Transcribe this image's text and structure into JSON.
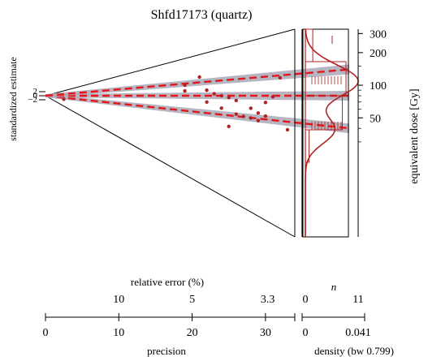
{
  "chart_data": {
    "type": "scatter",
    "subtype": "abanico",
    "title": "Shfd17173 (quartz)",
    "zlabel": "standardized estimate",
    "z_ticks": [
      "2",
      "0",
      "−2"
    ],
    "ylabel": "equivalent dose [Gy]",
    "y_ticks": [
      50,
      100,
      200,
      300
    ],
    "y_scale": "log",
    "ylim": [
      20,
      300
    ],
    "precision": {
      "label": "precision",
      "ticks": [
        "0",
        "10",
        "20",
        "30"
      ],
      "range": [
        0,
        34
      ]
    },
    "relative_error": {
      "label": "relative error (%)",
      "ticks": [
        "10",
        "5",
        "3.3"
      ]
    },
    "density": {
      "label": "density (bw 0.799)",
      "ticks": [
        "0",
        "0.041"
      ]
    },
    "n_axis": {
      "label": "n",
      "ticks": [
        "0",
        "11"
      ]
    },
    "central_doses": [
      40,
      80,
      140
    ],
    "points": [
      {
        "x": 2.5,
        "y": 29
      },
      {
        "x": 21,
        "y": 152
      },
      {
        "x": 19,
        "y": 120
      },
      {
        "x": 19,
        "y": 96
      },
      {
        "x": 22,
        "y": 96
      },
      {
        "x": 23,
        "y": 85
      },
      {
        "x": 24,
        "y": 80
      },
      {
        "x": 25,
        "y": 76
      },
      {
        "x": 26,
        "y": 70
      },
      {
        "x": 22,
        "y": 65
      },
      {
        "x": 24,
        "y": 55
      },
      {
        "x": 26,
        "y": 48
      },
      {
        "x": 27,
        "y": 46
      },
      {
        "x": 28,
        "y": 45
      },
      {
        "x": 29,
        "y": 43
      },
      {
        "x": 30,
        "y": 49
      },
      {
        "x": 28,
        "y": 58
      },
      {
        "x": 30,
        "y": 68
      },
      {
        "x": 31,
        "y": 78
      },
      {
        "x": 32,
        "y": 120
      },
      {
        "x": 33,
        "y": 38
      },
      {
        "x": 25,
        "y": 33
      },
      {
        "x": 29,
        "y": 52
      }
    ],
    "histogram_counts": [
      2,
      11,
      10,
      1
    ],
    "colors": {
      "points": "#b22222",
      "lines": "#e8141b",
      "band": "#a9a9b8",
      "axis": "#000000"
    }
  }
}
